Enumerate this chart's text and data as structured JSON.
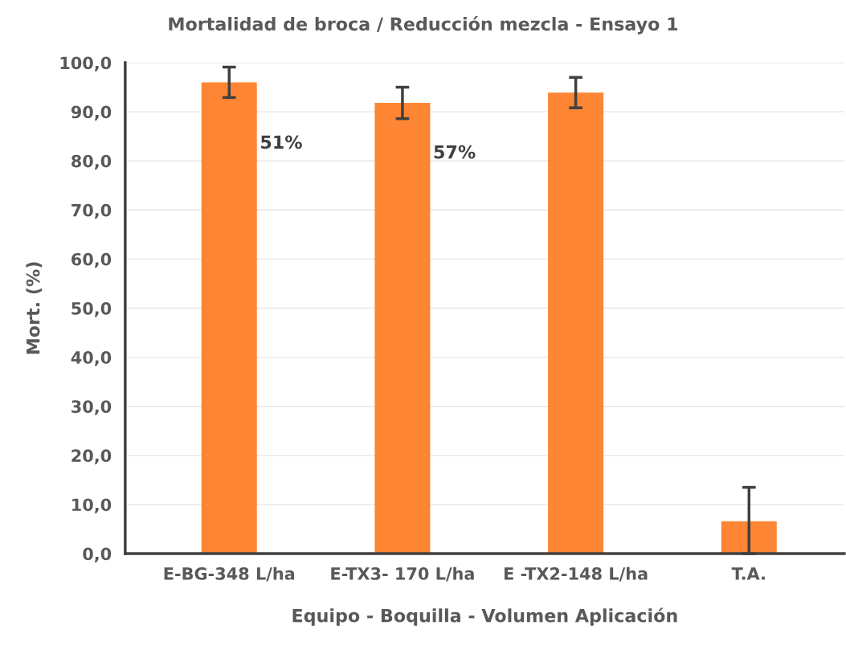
{
  "chart_data": {
    "type": "bar",
    "title": "Mortalidad de broca / Reducción mezcla - Ensayo 1",
    "xlabel": "Equipo - Boquilla - Volumen Aplicación",
    "ylabel": "Mort. (%)",
    "categories": [
      "E-BG-348 L/ha",
      "E-TX3- 170 L/ha",
      "E -TX2-148 L/ha",
      "T.A."
    ],
    "values": [
      96.0,
      91.8,
      93.9,
      6.6
    ],
    "errors": [
      3.1,
      3.2,
      3.1,
      [
        6.6,
        6.9
      ]
    ],
    "color": "#fe8533",
    "ylim": [
      0,
      100
    ],
    "yticks": [
      {
        "value": 0,
        "label": "0,0"
      },
      {
        "value": 10,
        "label": "10,0"
      },
      {
        "value": 20,
        "label": "20,0"
      },
      {
        "value": 30,
        "label": "30,0"
      },
      {
        "value": 40,
        "label": "40,0"
      },
      {
        "value": 50,
        "label": "50,0"
      },
      {
        "value": 60,
        "label": "60,0"
      },
      {
        "value": 70,
        "label": "70,0"
      },
      {
        "value": 80,
        "label": "80,0"
      },
      {
        "value": 90,
        "label": "90,0"
      },
      {
        "value": 100,
        "label": "100,0"
      }
    ],
    "annotations": [
      "51%",
      "57%"
    ],
    "grid": "y",
    "legend": false
  }
}
